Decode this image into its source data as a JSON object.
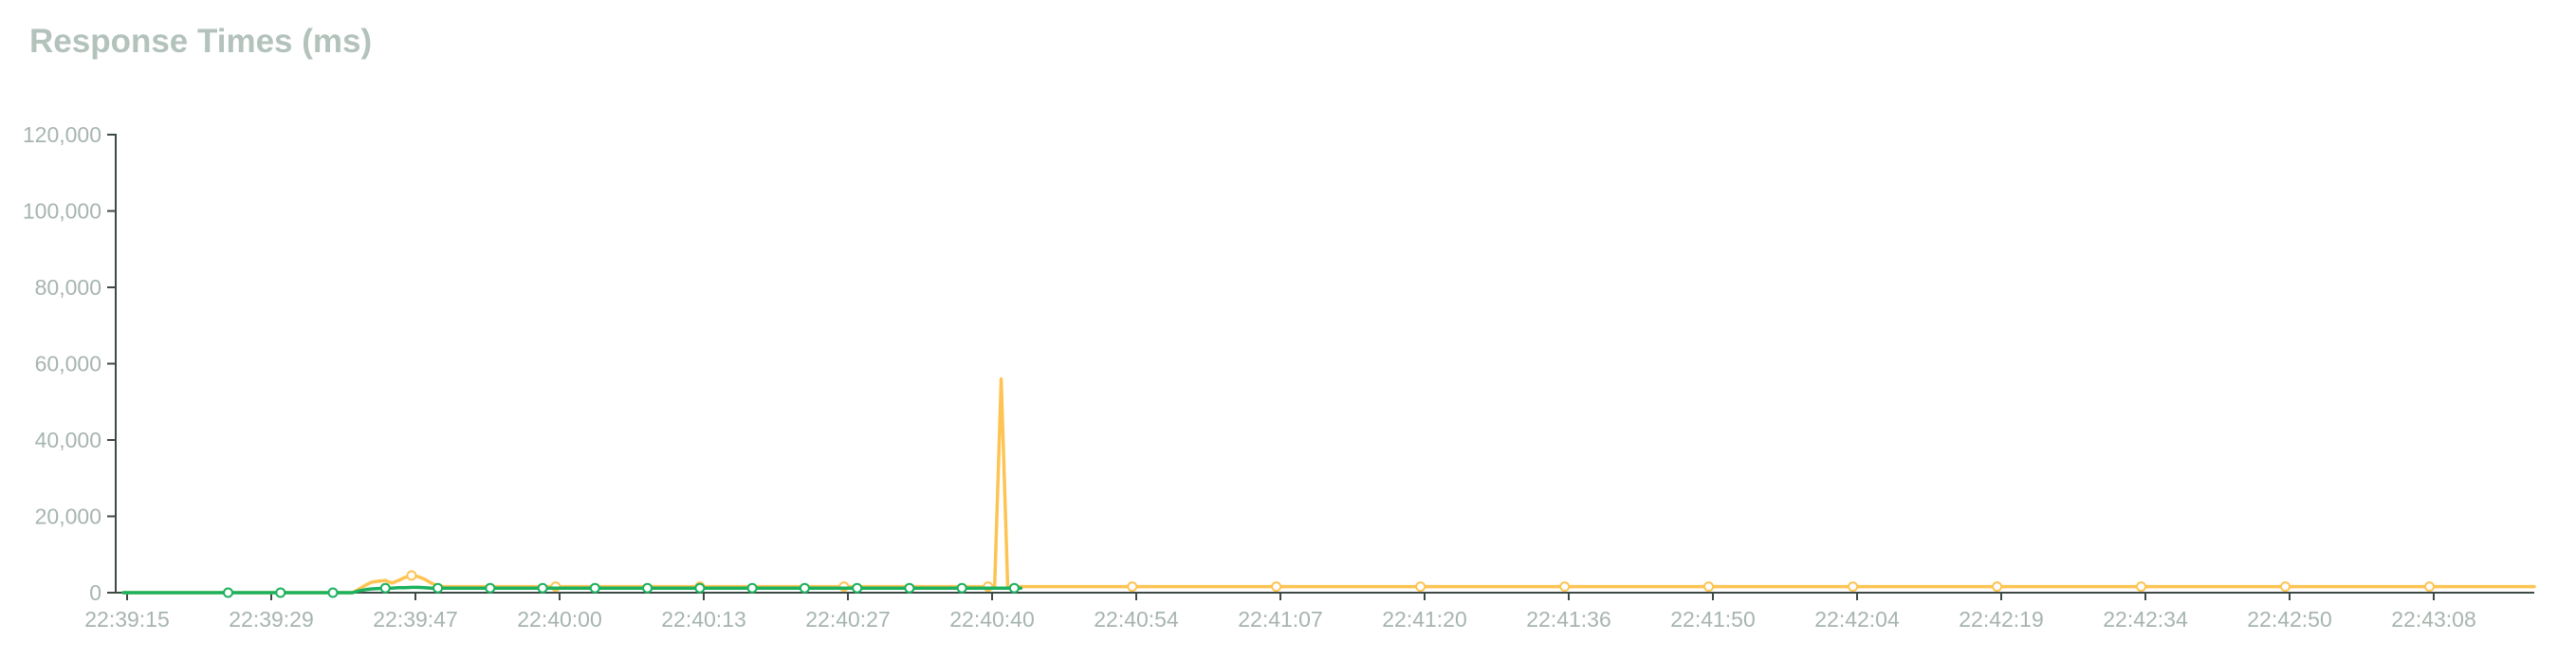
{
  "chart_data": {
    "type": "line",
    "title": "Response Times (ms)",
    "xlabel": "",
    "ylabel": "",
    "ylim": [
      0,
      120000
    ],
    "yticks": [
      0,
      20000,
      40000,
      60000,
      80000,
      100000,
      120000
    ],
    "ytick_labels": [
      "0",
      "20,000",
      "40,000",
      "60,000",
      "80,000",
      "100,000",
      "120,000"
    ],
    "x_tick_labels": [
      "22:39:15",
      "22:39:29",
      "22:39:47",
      "22:40:00",
      "22:40:13",
      "22:40:27",
      "22:40:40",
      "22:40:54",
      "22:41:07",
      "22:41:20",
      "22:41:36",
      "22:41:50",
      "22:42:04",
      "22:42:19",
      "22:42:34",
      "22:42:50",
      "22:43:08"
    ],
    "grid": false,
    "legend": "none",
    "series": [
      {
        "color": "#fdc453",
        "values": [
          0,
          0,
          0,
          0,
          0,
          0,
          0,
          0,
          0,
          0,
          0,
          0,
          0,
          0,
          0,
          0,
          0,
          0,
          0,
          0,
          0,
          0,
          0,
          0,
          0,
          0,
          0,
          0,
          0,
          0,
          0,
          0,
          0,
          0,
          0,
          0,
          1000,
          2000,
          2800,
          3000,
          3200,
          2500,
          3200,
          4000,
          4500,
          4200,
          3500,
          2500,
          1800,
          1600,
          1600,
          1600,
          1600,
          1600,
          1600,
          1600,
          1600,
          1600,
          1600,
          1600,
          1600,
          1600,
          1600,
          1600,
          1600,
          1600,
          1600,
          1600,
          1600,
          1600,
          1600,
          1600,
          1600,
          1600,
          1600,
          1600,
          1600,
          1600,
          1600,
          1600,
          1600,
          1600,
          1600,
          1600,
          1600,
          1600,
          1600,
          1600,
          1600,
          1600,
          1600,
          1600,
          1600,
          1600,
          1600,
          1600,
          1600,
          1600,
          1600,
          1600,
          1600,
          1600,
          1600,
          1600,
          1600,
          1600,
          1600,
          1600,
          1600,
          1600,
          1600,
          1600,
          1600,
          1600,
          1600,
          1600,
          1600,
          1600,
          1600,
          1600,
          1600,
          1600,
          1600,
          1600,
          1600,
          1600,
          1600,
          1600,
          1600,
          1600,
          1600,
          1600,
          1600,
          1600,
          56000,
          1600,
          1600,
          1600,
          1600,
          1600,
          1600,
          1600,
          1600,
          1600,
          1600,
          1600,
          1600,
          1600,
          1600,
          1600,
          1600,
          1600,
          1600,
          1600,
          1600,
          1600,
          1600,
          1600,
          1600,
          1600,
          1600,
          1600,
          1600,
          1600,
          1600,
          1600,
          1600,
          1600,
          1600,
          1600,
          1600,
          1600,
          1600,
          1600,
          1600,
          1600,
          1600,
          1600,
          1600,
          1600,
          1600,
          1600,
          1600,
          1600,
          1600,
          1600,
          1600,
          1600,
          1600,
          1600,
          1600,
          1600,
          1600,
          1600,
          1600,
          1600,
          1600,
          1600,
          1600,
          1600,
          1600,
          1600,
          1600,
          1600,
          1600,
          1600,
          1600,
          1600,
          1600,
          1600,
          1600,
          1600,
          1600,
          1600,
          1600,
          1600,
          1600,
          1600,
          1600,
          1600,
          1600,
          1600,
          1600,
          1600,
          1600,
          1600,
          1600,
          1600,
          1600,
          1600,
          1600,
          1600,
          1600,
          1600,
          1600,
          1600,
          1600,
          1600,
          1600,
          1600,
          1600,
          1600,
          1600,
          1600,
          1600,
          1600,
          1600,
          1600,
          1600,
          1600,
          1600,
          1600,
          1600,
          1600,
          1600,
          1600,
          1600,
          1600,
          1600,
          1600,
          1600,
          1600,
          1600,
          1600,
          1600,
          1600,
          1600,
          1600,
          1600,
          1600,
          1600,
          1600,
          1600,
          1600,
          1600,
          1600,
          1600,
          1600,
          1600,
          1600,
          1600,
          1600,
          1600,
          1600,
          1600,
          1600,
          1600,
          1600,
          1600,
          1600,
          1600,
          1600,
          1600,
          1600,
          1600,
          1600,
          1600,
          1600,
          1600,
          1600,
          1600,
          1600,
          1600,
          1600,
          1600,
          1600,
          1600,
          1600,
          1600,
          1600,
          1600,
          1600,
          1600,
          1600,
          1600,
          1600,
          1600,
          1600,
          1600,
          1600,
          1600,
          1600,
          1600,
          1600,
          1600,
          1600,
          1600,
          1600,
          1600,
          1600,
          1600,
          1600,
          1600,
          1600,
          1600,
          1600,
          1600,
          1600,
          1600,
          1600,
          1600,
          1600,
          1600,
          1600,
          1600,
          1600,
          1600,
          1600,
          1600,
          1600,
          1600,
          1600,
          1600,
          1600,
          1600,
          1600,
          1600,
          1600,
          1600,
          1600,
          1600,
          1600,
          1600,
          1600,
          1600,
          1600,
          1600,
          1600,
          1600
        ]
      },
      {
        "color": "#1bb15e",
        "values": [
          0,
          0,
          0,
          0,
          0,
          0,
          0,
          0,
          0,
          0,
          0,
          0,
          0,
          0,
          0,
          0,
          0,
          0,
          0,
          0,
          0,
          0,
          0,
          0,
          0,
          0,
          0,
          0,
          0,
          0,
          0,
          0,
          0,
          0,
          0,
          0,
          500,
          800,
          1000,
          1100,
          1200,
          1200,
          1300,
          1300,
          1400,
          1400,
          1300,
          1200,
          1200,
          1200,
          1200,
          1200,
          1200,
          1200,
          1200,
          1200,
          1200,
          1200,
          1200,
          1200,
          1200,
          1200,
          1200,
          1200,
          1200,
          1200,
          1200,
          1200,
          1200,
          1200,
          1200,
          1200,
          1200,
          1200,
          1200,
          1200,
          1200,
          1200,
          1200,
          1200,
          1200,
          1200,
          1200,
          1200,
          1200,
          1200,
          1200,
          1200,
          1200,
          1200,
          1200,
          1200,
          1200,
          1200,
          1200,
          1200,
          1200,
          1200,
          1200,
          1200,
          1200,
          1200,
          1200,
          1200,
          1200,
          1200,
          1200,
          1200,
          1200,
          1200,
          1200,
          1200,
          1200,
          1200,
          1200,
          1200,
          1200,
          1200,
          1200,
          1200,
          1200,
          1200,
          1200,
          1200,
          1200,
          1200,
          1200,
          1200,
          1200,
          1200,
          1200,
          1200,
          1200,
          1200,
          1200,
          1200,
          1200,
          1200
        ]
      }
    ]
  }
}
